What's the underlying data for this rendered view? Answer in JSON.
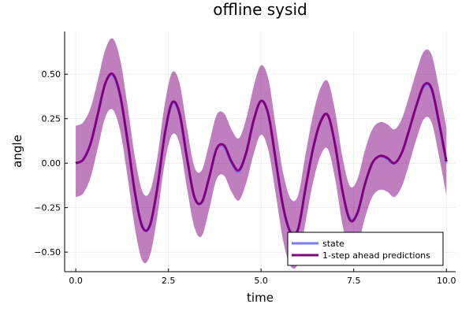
{
  "chart_data": {
    "type": "line",
    "title": "offline sysid",
    "xlabel": "time",
    "ylabel": "angle",
    "xlim": [
      -0.3,
      10.25
    ],
    "ylim": [
      -0.61,
      0.74
    ],
    "xticks": [
      {
        "value": 0.0,
        "label": "0.0"
      },
      {
        "value": 2.5,
        "label": "2.5"
      },
      {
        "value": 5.0,
        "label": "5.0"
      },
      {
        "value": 7.5,
        "label": "7.5"
      },
      {
        "value": 10.0,
        "label": "10.0"
      }
    ],
    "yticks": [
      {
        "value": 0.5,
        "label": "0.50"
      },
      {
        "value": 0.25,
        "label": "0.25"
      },
      {
        "value": 0.0,
        "label": "0.00"
      },
      {
        "value": -0.25,
        "label": "−0.25"
      },
      {
        "value": -0.5,
        "label": "−0.50"
      }
    ],
    "grid": true,
    "legend_position": "bottom-right",
    "x": [
      0.0,
      0.2,
      0.4,
      0.6,
      0.8,
      1.0,
      1.2,
      1.4,
      1.6,
      1.8,
      2.0,
      2.2,
      2.4,
      2.6,
      2.8,
      3.0,
      3.2,
      3.4,
      3.6,
      3.8,
      4.0,
      4.2,
      4.4,
      4.6,
      4.8,
      5.0,
      5.2,
      5.4,
      5.6,
      5.8,
      6.0,
      6.2,
      6.4,
      6.6,
      6.8,
      7.0,
      7.2,
      7.4,
      7.6,
      7.8,
      8.0,
      8.2,
      8.4,
      8.6,
      8.8,
      9.0,
      9.2,
      9.4,
      9.6,
      9.8,
      10.0
    ],
    "series": [
      {
        "name": "state",
        "color": "#7b7bf0",
        "y": [
          0.0,
          0.02,
          0.11,
          0.28,
          0.45,
          0.49,
          0.37,
          0.12,
          -0.17,
          -0.35,
          -0.36,
          -0.14,
          0.16,
          0.33,
          0.27,
          0.03,
          -0.19,
          -0.22,
          -0.08,
          0.08,
          0.09,
          0.0,
          -0.05,
          0.06,
          0.24,
          0.35,
          0.27,
          0.01,
          -0.25,
          -0.39,
          -0.37,
          -0.14,
          0.08,
          0.23,
          0.27,
          0.1,
          -0.16,
          -0.31,
          -0.28,
          -0.12,
          0.0,
          0.04,
          0.02,
          0.0,
          0.06,
          0.19,
          0.33,
          0.43,
          0.41,
          0.22,
          0.0
        ]
      },
      {
        "name": "1-step ahead predictions",
        "color": "#800080",
        "band_color": "#800080",
        "band_opacity": 0.5,
        "y": [
          0.0,
          0.02,
          0.11,
          0.28,
          0.45,
          0.5,
          0.38,
          0.12,
          -0.17,
          -0.36,
          -0.35,
          -0.14,
          0.16,
          0.34,
          0.28,
          0.03,
          -0.19,
          -0.22,
          -0.08,
          0.08,
          0.1,
          0.01,
          -0.04,
          0.06,
          0.24,
          0.35,
          0.27,
          0.01,
          -0.25,
          -0.39,
          -0.37,
          -0.14,
          0.08,
          0.23,
          0.27,
          0.1,
          -0.16,
          -0.32,
          -0.28,
          -0.12,
          0.0,
          0.04,
          0.03,
          0.0,
          0.06,
          0.19,
          0.33,
          0.44,
          0.42,
          0.23,
          0.01
        ],
        "lower": [
          -0.19,
          -0.17,
          -0.08,
          0.09,
          0.26,
          0.3,
          0.18,
          -0.08,
          -0.37,
          -0.55,
          -0.52,
          -0.3,
          0.0,
          0.16,
          0.11,
          -0.14,
          -0.36,
          -0.41,
          -0.26,
          -0.09,
          -0.07,
          -0.16,
          -0.21,
          -0.11,
          0.05,
          0.16,
          0.07,
          -0.18,
          -0.44,
          -0.58,
          -0.56,
          -0.33,
          -0.11,
          0.04,
          0.08,
          -0.09,
          -0.35,
          -0.51,
          -0.47,
          -0.31,
          -0.19,
          -0.15,
          -0.16,
          -0.19,
          -0.13,
          0.0,
          0.14,
          0.25,
          0.23,
          0.04,
          -0.18
        ],
        "upper": [
          0.21,
          0.23,
          0.31,
          0.47,
          0.64,
          0.7,
          0.58,
          0.32,
          0.03,
          -0.16,
          -0.16,
          0.03,
          0.33,
          0.51,
          0.45,
          0.2,
          -0.02,
          -0.04,
          0.11,
          0.27,
          0.28,
          0.19,
          0.14,
          0.25,
          0.43,
          0.55,
          0.47,
          0.2,
          -0.06,
          -0.2,
          -0.18,
          0.05,
          0.27,
          0.42,
          0.46,
          0.29,
          0.03,
          -0.13,
          -0.09,
          0.07,
          0.19,
          0.23,
          0.22,
          0.19,
          0.25,
          0.38,
          0.52,
          0.63,
          0.61,
          0.42,
          0.2
        ]
      }
    ]
  }
}
